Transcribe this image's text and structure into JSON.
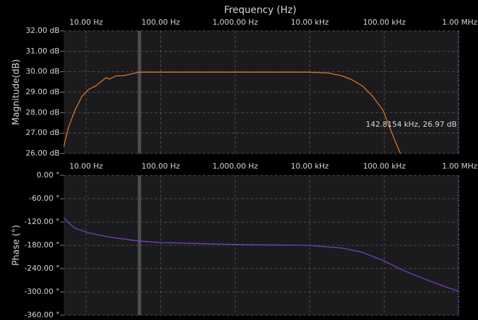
{
  "chart_data": [
    {
      "type": "line",
      "title": "Frequency (Hz)",
      "ylabel": "Magnitude(dB)",
      "xscale": "log",
      "grid": true,
      "color": "#e07a22",
      "annotation": "142.8154 kHz, 26.97 dB",
      "cursor_x": 52,
      "xlim": [
        5,
        1000000
      ],
      "xticks": [
        {
          "value": 10,
          "label": "10.00 Hz"
        },
        {
          "value": 100,
          "label": "100.00 Hz"
        },
        {
          "value": 1000,
          "label": "1,000.00 Hz"
        },
        {
          "value": 10000,
          "label": "10.00 kHz"
        },
        {
          "value": 100000,
          "label": "100.00 kHz"
        },
        {
          "value": 1000000,
          "label": "1.00 MHz"
        }
      ],
      "ylim": [
        26,
        32
      ],
      "yticks": [
        {
          "value": 26,
          "label": "26.00 dB"
        },
        {
          "value": 27,
          "label": "27.00 dB"
        },
        {
          "value": 28,
          "label": "28.00 dB"
        },
        {
          "value": 29,
          "label": "29.00 dB"
        },
        {
          "value": 30,
          "label": "30.00 dB"
        },
        {
          "value": 31,
          "label": "31.00 dB"
        },
        {
          "value": 32,
          "label": "32.00 dB"
        }
      ],
      "x": [
        5,
        5.8,
        7.1,
        8.8,
        10.9,
        13.4,
        16.6,
        18.5,
        20.5,
        25.3,
        31.3,
        38.6,
        52,
        100,
        400,
        1100,
        9400,
        17700,
        27000,
        37000,
        51000,
        70000,
        96000,
        118000,
        140000,
        166000
      ],
      "values": [
        26.33,
        27.28,
        28.12,
        28.8,
        29.14,
        29.3,
        29.57,
        29.71,
        29.64,
        29.8,
        29.8,
        29.88,
        29.98,
        29.98,
        29.98,
        29.98,
        29.98,
        29.94,
        29.8,
        29.6,
        29.3,
        28.8,
        28.12,
        27.28,
        26.6,
        25.97
      ]
    },
    {
      "type": "line",
      "ylabel": "Phase (°)",
      "xscale": "log",
      "grid": true,
      "color": "#7b3fd0",
      "cursor_x": 52,
      "xlim": [
        5,
        1000000
      ],
      "xticks": [
        {
          "value": 10,
          "label": "10.00 Hz"
        },
        {
          "value": 100,
          "label": "100.00 Hz"
        },
        {
          "value": 1000,
          "label": "1,000.00 Hz"
        },
        {
          "value": 10000,
          "label": "10.00 kHz"
        },
        {
          "value": 100000,
          "label": "100.00 kHz"
        },
        {
          "value": 1000000,
          "label": "1.00 MHz"
        }
      ],
      "ylim": [
        -360,
        0
      ],
      "yticks": [
        {
          "value": 0,
          "label": "0.00 °"
        },
        {
          "value": -60,
          "label": "-60.00 °"
        },
        {
          "value": -120,
          "label": "-120.00 °"
        },
        {
          "value": -180,
          "label": "-180.00 °"
        },
        {
          "value": -240,
          "label": "-240.00 °"
        },
        {
          "value": -300,
          "label": "-300.00 °"
        },
        {
          "value": -360,
          "label": "-360.00 °"
        }
      ],
      "x": [
        5,
        5.8,
        7.1,
        10.9,
        20.5,
        52,
        100,
        400,
        1100,
        9400,
        27000,
        51000,
        96000,
        181000,
        340000,
        641000,
        1000000
      ],
      "values": [
        -109,
        -122,
        -136,
        -148,
        -159,
        -169,
        -173,
        -176,
        -178,
        -180,
        -187,
        -198,
        -219,
        -245,
        -266,
        -286,
        -298
      ]
    }
  ]
}
